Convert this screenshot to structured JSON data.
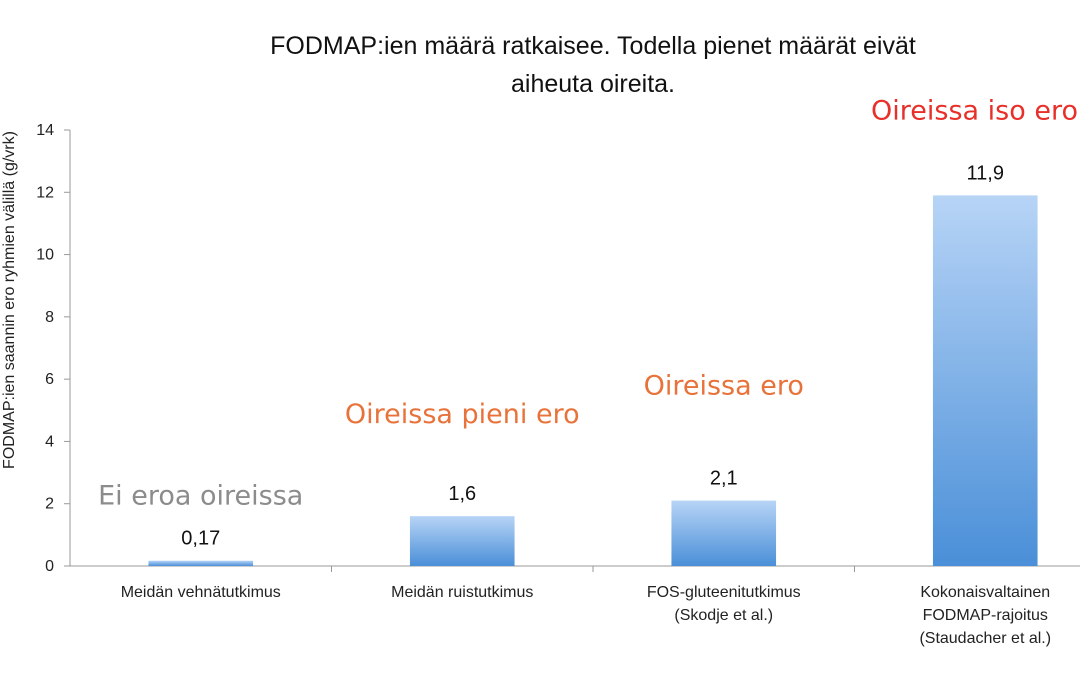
{
  "chart_data": {
    "type": "bar",
    "title_lines": [
      "FODMAP:ien määrä ratkaisee. Todella pienet määrät eivät",
      "aiheuta oireita."
    ],
    "ylabel": "FODMAP:ien saannin ero ryhmien välillä (g/vrk)",
    "ylim": [
      0,
      14
    ],
    "yticks": [
      0,
      2,
      4,
      6,
      8,
      10,
      12,
      14
    ],
    "grid": false,
    "categories": [
      [
        "Meidän vehnätutkimus"
      ],
      [
        "Meidän ruistutkimus"
      ],
      [
        "FOS-gluteenitutkimus",
        "(Skodje et al.)"
      ],
      [
        "Kokonaisvaltainen",
        "FODMAP-rajoitus",
        "(Staudacher et al.)"
      ]
    ],
    "values": [
      0.17,
      1.6,
      2.1,
      11.9
    ],
    "data_labels": [
      "0,17",
      "1,6",
      "2,1",
      "11,9"
    ],
    "bar_color_light": "#b7d4f6",
    "bar_color_dark": "#4a8fd8",
    "annotations": [
      {
        "text": "Ei eroa oireissa",
        "color": "#8c8c8c"
      },
      {
        "text": "Oireissa pieni ero",
        "color": "#e8733a"
      },
      {
        "text": "Oireissa ero",
        "color": "#e8733a"
      },
      {
        "text": "Oireissa iso ero",
        "color": "#e8302a"
      }
    ]
  }
}
